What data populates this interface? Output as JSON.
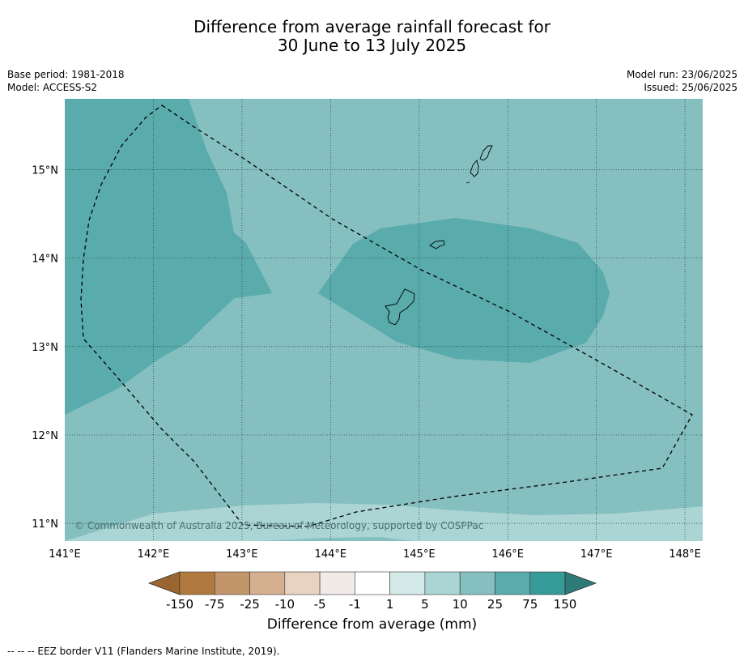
{
  "title": {
    "line1": "Difference from average rainfall forecast for",
    "line2": "30 June to 13 July 2025"
  },
  "meta_left": {
    "base_period": "Base period: 1981-2018",
    "model": "Model: ACCESS-S2"
  },
  "meta_right": {
    "model_run": "Model run: 23/06/2025",
    "issued": "Issued: 25/06/2025"
  },
  "map": {
    "longitude_ticks": [
      "141°E",
      "142°E",
      "143°E",
      "144°E",
      "145°E",
      "146°E",
      "147°E",
      "148°E"
    ],
    "latitude_ticks": [
      "15°N",
      "14°N",
      "13°N",
      "12°N",
      "11°N"
    ],
    "lon_range": [
      141.0,
      148.2
    ],
    "lat_range": [
      10.8,
      15.8
    ],
    "copyright": "© Commonwealth of Australia 2025, Bureau of Meteorology, supported by COSPPac",
    "gridlines": true,
    "colors": {
      "background_10_25": "#85bfbf",
      "region_25_75": "#5aabac",
      "region_5_10": "#abd4d4",
      "coastline": "#000000",
      "eez_border": "#000000"
    }
  },
  "colorbar": {
    "tick_labels": [
      "-150",
      "-75",
      "-25",
      "-10",
      "-5",
      "-1",
      "1",
      "5",
      "10",
      "25",
      "75",
      "150"
    ],
    "colors": [
      "#9a6530",
      "#b07a3f",
      "#c3956b",
      "#d4b090",
      "#e8d2c0",
      "#f1ebe8",
      "#ffffff",
      "#d4eae8",
      "#abd4d4",
      "#85bfbf",
      "#5aabac",
      "#359a98",
      "#2d7a79"
    ],
    "label": "Difference from average (mm)"
  },
  "footer": "--  --  -- EEZ border V11 (Flanders Marine Institute, 2019)."
}
